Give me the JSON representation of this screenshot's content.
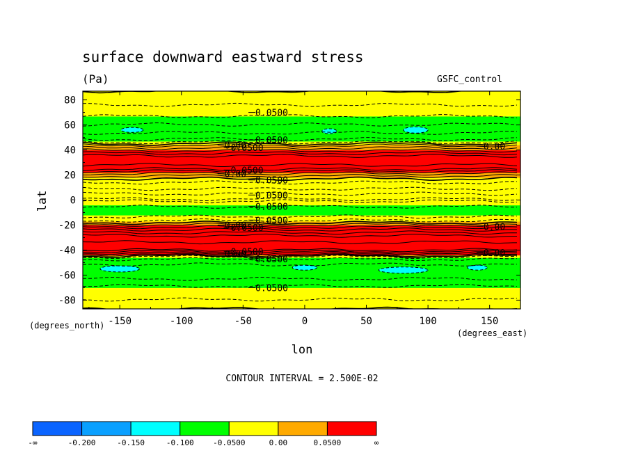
{
  "colors": {
    "band_colors": [
      "#0a64ff",
      "#0aa0ff",
      "#00ffff",
      "#00ff00",
      "#ffff00",
      "#ffaa00",
      "#ff0000"
    ],
    "contour_line": "#000000",
    "background": "#ffffff"
  },
  "chart_data": {
    "type": "heatmap",
    "title": "surface downward eastward stress",
    "units": "(Pa)",
    "dataset": "GSFC_control",
    "xlabel": "lon",
    "ylabel": "lat",
    "x_units": "(degrees_east)",
    "y_units": "(degrees_north)",
    "xlim": [
      -180,
      175
    ],
    "ylim": [
      -87,
      87
    ],
    "x_ticks": [
      -150,
      -100,
      -50,
      0,
      50,
      100,
      150
    ],
    "x_tick_labels": [
      "-150",
      "-100",
      "-50",
      "0",
      "50",
      "100",
      "150"
    ],
    "y_ticks": [
      -80,
      -60,
      -40,
      -20,
      0,
      20,
      40,
      60,
      80
    ],
    "y_tick_labels": [
      "-80",
      "-60",
      "-40",
      "-20",
      "0",
      "20",
      "40",
      "60",
      "80"
    ],
    "contour_interval_text": "CONTOUR INTERVAL = 2.500E-02",
    "colorbar": {
      "levels": [
        "-∞",
        "-0.200",
        "-0.150",
        "-0.100",
        "-0.0500",
        "0.00",
        "0.0500",
        "∞"
      ],
      "bins": 7
    },
    "latitude_profile": [
      {
        "lat": -87,
        "value": 0.0
      },
      {
        "lat": -78,
        "value": -0.03
      },
      {
        "lat": -70,
        "value": -0.045
      },
      {
        "lat": -66,
        "value": -0.06
      },
      {
        "lat": -60,
        "value": -0.09
      },
      {
        "lat": -56,
        "value": -0.09
      },
      {
        "lat": -50,
        "value": -0.07
      },
      {
        "lat": -46,
        "value": -0.04
      },
      {
        "lat": -44,
        "value": 0.02
      },
      {
        "lat": -40,
        "value": 0.1
      },
      {
        "lat": -30,
        "value": 0.14
      },
      {
        "lat": -24,
        "value": 0.08
      },
      {
        "lat": -20,
        "value": 0.03
      },
      {
        "lat": -17,
        "value": -0.02
      },
      {
        "lat": -12,
        "value": -0.06
      },
      {
        "lat": -8,
        "value": -0.07
      },
      {
        "lat": -4,
        "value": -0.04
      },
      {
        "lat": 0,
        "value": -0.02
      },
      {
        "lat": 3,
        "value": -0.04
      },
      {
        "lat": 7,
        "value": -0.06
      },
      {
        "lat": 11,
        "value": -0.04
      },
      {
        "lat": 15,
        "value": -0.02
      },
      {
        "lat": 18,
        "value": 0.01
      },
      {
        "lat": 22,
        "value": 0.06
      },
      {
        "lat": 26,
        "value": 0.12
      },
      {
        "lat": 34,
        "value": 0.14
      },
      {
        "lat": 40,
        "value": 0.07
      },
      {
        "lat": 44,
        "value": 0.02
      },
      {
        "lat": 47,
        "value": -0.04
      },
      {
        "lat": 52,
        "value": -0.07
      },
      {
        "lat": 57,
        "value": -0.085
      },
      {
        "lat": 62,
        "value": -0.07
      },
      {
        "lat": 67,
        "value": -0.05
      },
      {
        "lat": 72,
        "value": -0.03
      },
      {
        "lat": 80,
        "value": -0.02
      },
      {
        "lat": 87,
        "value": 0.0
      }
    ],
    "cyan_patches": [
      {
        "lon": -140,
        "lat": 56,
        "rx": 9,
        "ry": 2
      },
      {
        "lon": 20,
        "lat": 55,
        "rx": 6,
        "ry": 2
      },
      {
        "lon": 90,
        "lat": 56,
        "rx": 10,
        "ry": 2.5
      },
      {
        "lon": -150,
        "lat": -55,
        "rx": 16,
        "ry": 2.5
      },
      {
        "lon": 0,
        "lat": -54,
        "rx": 10,
        "ry": 2
      },
      {
        "lon": 80,
        "lat": -56,
        "rx": 20,
        "ry": 2.5
      },
      {
        "lon": 140,
        "lat": -54,
        "rx": 8,
        "ry": 2
      }
    ],
    "contour_labels": [
      {
        "text": "0.0500",
        "lon": -40,
        "lat": 70
      },
      {
        "text": "0.0500",
        "lon": -40,
        "lat": 48
      },
      {
        "text": "0.0500",
        "lon": -60,
        "lat": 42
      },
      {
        "text": "0.00",
        "lon": -65,
        "lat": 44
      },
      {
        "text": "0.00",
        "lon": 145,
        "lat": 43
      },
      {
        "text": "0.0500",
        "lon": -60,
        "lat": 24
      },
      {
        "text": "0.00",
        "lon": -65,
        "lat": 21
      },
      {
        "text": "0.0500",
        "lon": -40,
        "lat": 16
      },
      {
        "text": "0.0500",
        "lon": -40,
        "lat": 4
      },
      {
        "text": "0.0500",
        "lon": -40,
        "lat": -5
      },
      {
        "text": "0.0500",
        "lon": -40,
        "lat": -16
      },
      {
        "text": "0.0500",
        "lon": -60,
        "lat": -22
      },
      {
        "text": "0.00",
        "lon": -65,
        "lat": -20
      },
      {
        "text": "0.00",
        "lon": 145,
        "lat": -21
      },
      {
        "text": "0.0500",
        "lon": -60,
        "lat": -41
      },
      {
        "text": "0.00",
        "lon": -65,
        "lat": -43
      },
      {
        "text": "0.0500",
        "lon": -40,
        "lat": -47
      },
      {
        "text": "0.00",
        "lon": 145,
        "lat": -42
      },
      {
        "text": "0.0500",
        "lon": -40,
        "lat": -70
      }
    ]
  }
}
